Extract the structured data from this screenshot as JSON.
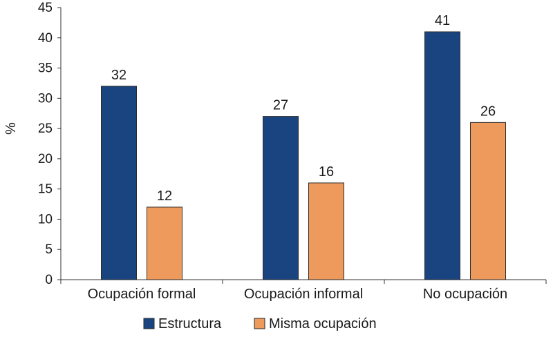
{
  "chart_data": {
    "type": "bar",
    "title": "",
    "xlabel": "",
    "ylabel": "%",
    "ylim": [
      0,
      45
    ],
    "yticks": [
      0,
      5,
      10,
      15,
      20,
      25,
      30,
      35,
      40,
      45
    ],
    "categories": [
      "Ocupación formal",
      "Ocupación informal",
      "No ocupación"
    ],
    "series": [
      {
        "name": "Estructura",
        "values": [
          32,
          27,
          41
        ],
        "color": "#1a4480"
      },
      {
        "name": "Misma ocupación",
        "values": [
          12,
          16,
          26
        ],
        "color": "#ee9a5c"
      }
    ],
    "legend_position": "bottom-center",
    "grid": false
  }
}
